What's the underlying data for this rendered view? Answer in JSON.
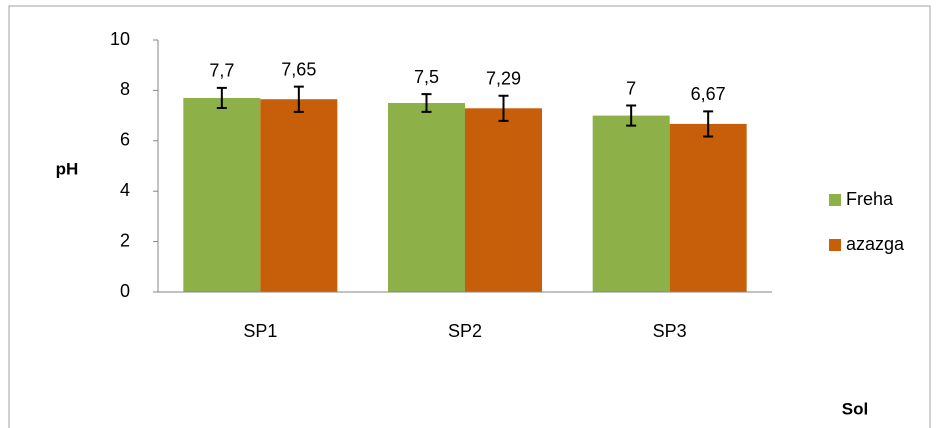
{
  "chart_data": {
    "type": "bar",
    "categories": [
      "SP1",
      "SP2",
      "SP3"
    ],
    "series": [
      {
        "name": "Freha",
        "color": "#8db049",
        "values": [
          7.7,
          7.5,
          7
        ],
        "value_labels": [
          "7,7",
          "7,5",
          "7"
        ],
        "errors": [
          0.4,
          0.35,
          0.4
        ]
      },
      {
        "name": "azazga",
        "color": "#c65e0a",
        "values": [
          7.65,
          7.29,
          6.67
        ],
        "value_labels": [
          "7,65",
          "7,29",
          "6,67"
        ],
        "errors": [
          0.5,
          0.5,
          0.5
        ]
      }
    ],
    "y_label": "pH",
    "x_label": "Sol",
    "ylim": [
      0,
      10
    ],
    "yticks": [
      0,
      2,
      4,
      6,
      8,
      10
    ],
    "grid": false,
    "legend": "right"
  }
}
